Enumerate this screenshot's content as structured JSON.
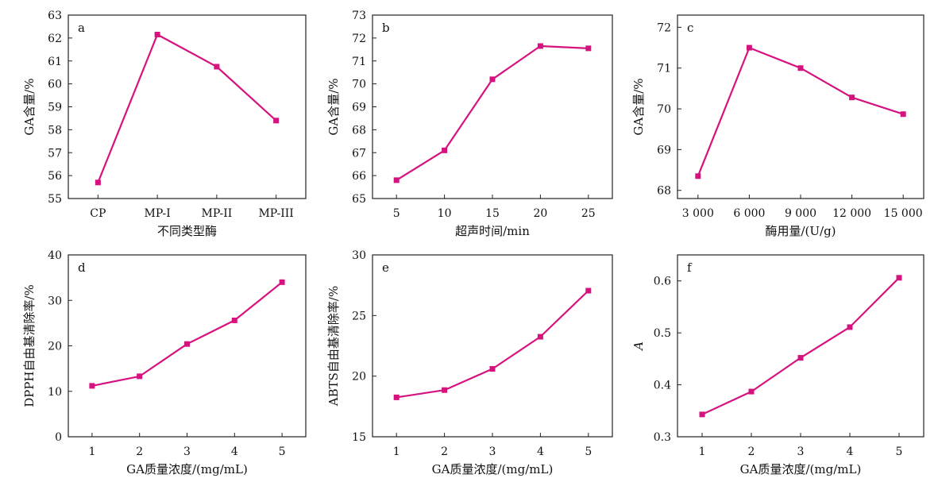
{
  "figure": {
    "line_color": "#d6127f",
    "axis_color": "#222222"
  },
  "chart_data": [
    {
      "type": "line",
      "panel_label": "a",
      "categories": [
        "CP",
        "MP-I",
        "MP-II",
        "MP-III"
      ],
      "values": [
        55.7,
        62.15,
        60.75,
        58.4
      ],
      "xlabel": "不同类型酶",
      "ylabel": "GA含量/%",
      "ylim": [
        55,
        63
      ],
      "yticks": [
        55,
        56,
        57,
        58,
        59,
        60,
        61,
        62,
        63
      ],
      "grid": false
    },
    {
      "type": "line",
      "panel_label": "b",
      "x": [
        5,
        10,
        15,
        20,
        25
      ],
      "values": [
        65.8,
        67.1,
        70.2,
        71.65,
        71.55
      ],
      "xlabel": "超声时间/min",
      "ylabel": "GA含量/%",
      "xlim": [
        2.5,
        27.5
      ],
      "xticks": [
        5,
        10,
        15,
        20,
        25
      ],
      "xtick_labels": [
        "5",
        "10",
        "15",
        "20",
        "25"
      ],
      "ylim": [
        65,
        73
      ],
      "yticks": [
        65,
        66,
        67,
        68,
        69,
        70,
        71,
        72,
        73
      ],
      "grid": false
    },
    {
      "type": "line",
      "panel_label": "c",
      "x": [
        3000,
        6000,
        9000,
        12000,
        15000
      ],
      "values": [
        68.35,
        71.5,
        71.0,
        70.28,
        69.87
      ],
      "xlabel": "酶用量/(U/g)",
      "ylabel": "GA含量/%",
      "xlim": [
        1800,
        16200
      ],
      "xticks": [
        3000,
        6000,
        9000,
        12000,
        15000
      ],
      "xtick_labels": [
        "3 000",
        "6 000",
        "9 000",
        "12 000",
        "15 000"
      ],
      "ylim": [
        67.8,
        72.3
      ],
      "yticks": [
        68,
        69,
        70,
        71,
        72
      ],
      "grid": false
    },
    {
      "type": "line",
      "panel_label": "d",
      "x": [
        1,
        2,
        3,
        4,
        5
      ],
      "values": [
        11.2,
        13.3,
        20.4,
        25.6,
        34.0
      ],
      "xlabel": "GA质量浓度/(mg/mL)",
      "ylabel": "DPPH自由基清除率/%",
      "xlim": [
        0.5,
        5.5
      ],
      "xticks": [
        1,
        2,
        3,
        4,
        5
      ],
      "xtick_labels": [
        "1",
        "2",
        "3",
        "4",
        "5"
      ],
      "ylim": [
        0,
        40
      ],
      "yticks": [
        0,
        10,
        20,
        30,
        40
      ],
      "grid": false
    },
    {
      "type": "line",
      "panel_label": "e",
      "x": [
        1,
        2,
        3,
        4,
        5
      ],
      "values": [
        18.25,
        18.85,
        20.6,
        23.25,
        27.05
      ],
      "xlabel": "GA质量浓度/(mg/mL)",
      "ylabel": "ABTS自由基清除率/%",
      "xlim": [
        0.5,
        5.5
      ],
      "xticks": [
        1,
        2,
        3,
        4,
        5
      ],
      "xtick_labels": [
        "1",
        "2",
        "3",
        "4",
        "5"
      ],
      "ylim": [
        15,
        30
      ],
      "yticks": [
        15,
        20,
        25,
        30
      ],
      "grid": false
    },
    {
      "type": "line",
      "panel_label": "f",
      "x": [
        1,
        2,
        3,
        4,
        5
      ],
      "values": [
        0.343,
        0.387,
        0.452,
        0.511,
        0.606
      ],
      "xlabel": "GA质量浓度/(mg/mL)",
      "ylabel": "A",
      "ylabel_italic": true,
      "xlim": [
        0.5,
        5.5
      ],
      "xticks": [
        1,
        2,
        3,
        4,
        5
      ],
      "xtick_labels": [
        "1",
        "2",
        "3",
        "4",
        "5"
      ],
      "ylim": [
        0.3,
        0.65
      ],
      "yticks": [
        0.3,
        0.4,
        0.5,
        0.6
      ],
      "ytick_labels": [
        "0.3",
        "0.4",
        "0.5",
        "0.6"
      ],
      "grid": false
    }
  ]
}
